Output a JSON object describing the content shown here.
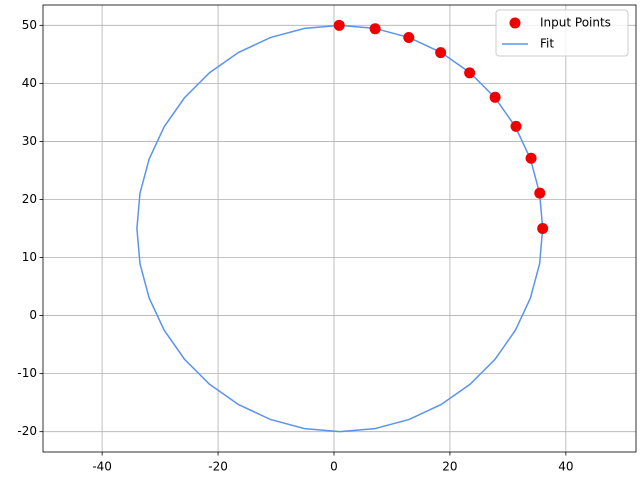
{
  "chart_data": {
    "type": "scatter",
    "xlim": [
      -50.2,
      52.1
    ],
    "ylim": [
      -23.5,
      53.5
    ],
    "xticks": [
      -40,
      -20,
      0,
      20,
      40
    ],
    "yticks": [
      -20,
      -10,
      0,
      10,
      20,
      30,
      40,
      50
    ],
    "grid": true,
    "legend": "upper right",
    "series": [
      {
        "name": "Input Points",
        "color": "#ee0000",
        "mode": "markers",
        "x": [
          0.9,
          7.1,
          12.9,
          18.4,
          23.4,
          27.8,
          31.4,
          34.0,
          35.5,
          36.0
        ],
        "y": [
          50.0,
          49.4,
          47.9,
          45.3,
          41.8,
          37.6,
          32.6,
          27.1,
          21.1,
          15.0
        ]
      },
      {
        "name": "Fit",
        "color": "#5b93ef",
        "mode": "line",
        "x": [
          36,
          35.47,
          33.89,
          31.31,
          27.81,
          23.5,
          18.5,
          12.97,
          7.08,
          1,
          -5.08,
          -10.97,
          -16.5,
          -21.5,
          -25.81,
          -29.31,
          -31.89,
          -33.47,
          -34,
          -33.47,
          -31.89,
          -29.31,
          -25.81,
          -21.5,
          -16.5,
          -10.97,
          -5.08,
          1,
          7.08,
          12.97,
          18.5,
          23.5,
          27.81,
          31.31,
          33.89,
          35.47,
          36
        ],
        "y": [
          15,
          21.08,
          26.97,
          32.5,
          37.5,
          41.81,
          45.31,
          47.89,
          49.47,
          50,
          49.47,
          47.89,
          45.31,
          41.81,
          37.5,
          32.5,
          26.97,
          21.08,
          15,
          8.92,
          3.03,
          -2.5,
          -7.5,
          -11.81,
          -15.31,
          -17.89,
          -19.47,
          -20,
          -19.47,
          -17.89,
          -15.31,
          -11.81,
          -7.5,
          -2.5,
          3.03,
          8.92,
          15
        ]
      }
    ]
  }
}
